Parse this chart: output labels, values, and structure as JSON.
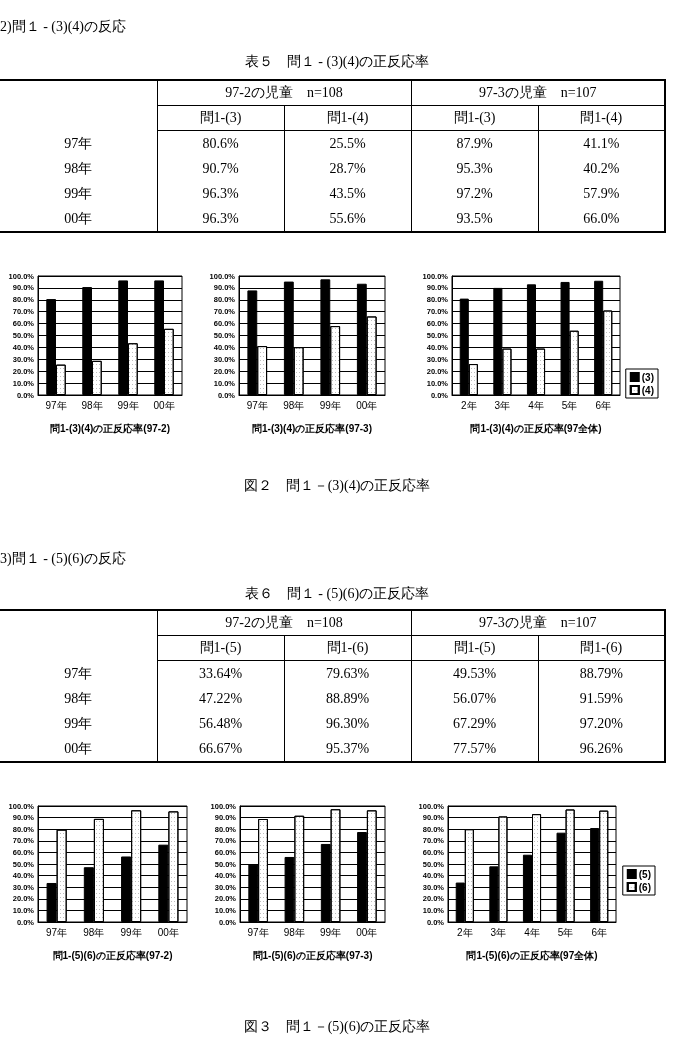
{
  "chart_data": [
    {
      "type": "other",
      "title": "2)問１ - (3)(4)の反応",
      "subtitle": "表５　問１ - (3)(4)の正反応率",
      "annotations": [
        "97-2の児童　n=108",
        "97-3の児童　n=107"
      ],
      "categories": [
        "97年",
        "98年",
        "99年",
        "00年"
      ],
      "series": [
        {
          "name": "問1-(3)",
          "values": [
            80.6,
            90.7,
            96.3,
            96.3
          ],
          "value_labels": [
            "80.6%",
            "90.7%",
            "96.3%",
            "96.3%"
          ]
        },
        {
          "name": "問1-(4)",
          "values": [
            25.5,
            28.7,
            43.5,
            55.6
          ],
          "value_labels": [
            "25.5%",
            "28.7%",
            "43.5%",
            "55.6%"
          ]
        },
        {
          "name": "問1-(3)",
          "values": [
            87.9,
            95.3,
            97.2,
            93.5
          ],
          "value_labels": [
            "87.9%",
            "95.3%",
            "97.2%",
            "93.5%"
          ]
        },
        {
          "name": "問1-(4)",
          "values": [
            41.1,
            40.2,
            57.9,
            66.0
          ],
          "value_labels": [
            "41.1%",
            "40.2%",
            "57.9%",
            "66.0%"
          ]
        }
      ]
    },
    {
      "type": "bar",
      "xlabel": "問1-(3)(4)の正反応率(97-2)",
      "categories": [
        "97年",
        "98年",
        "99年",
        "00年"
      ],
      "series": [
        {
          "color": "#000000",
          "values": [
            80.6,
            90.7,
            96.3,
            96.3
          ]
        },
        {
          "color": "#ffffff",
          "values": [
            25.5,
            28.7,
            43.5,
            55.6
          ]
        }
      ],
      "ylim": [
        0,
        100
      ],
      "yticks": [
        {
          "value": 0,
          "label": "0.0%"
        },
        {
          "value": 10,
          "label": "10.0%"
        },
        {
          "value": 20,
          "label": "20.0%"
        },
        {
          "value": 30,
          "label": "30.0%"
        },
        {
          "value": 40,
          "label": "40.0%"
        },
        {
          "value": 50,
          "label": "50.0%"
        },
        {
          "value": 60,
          "label": "60.0%"
        },
        {
          "value": 70,
          "label": "70.0%"
        },
        {
          "value": 80,
          "label": "80.0%"
        },
        {
          "value": 90,
          "label": "90.0%"
        },
        {
          "value": 100,
          "label": "100.0%"
        }
      ],
      "grid": "y"
    },
    {
      "type": "bar",
      "xlabel": "問1-(3)(4)の正反応率(97-3)",
      "annotations": [
        "図２　問１－(3)(4)の正反応率"
      ],
      "categories": [
        "97年",
        "98年",
        "99年",
        "00年"
      ],
      "series": [
        {
          "color": "#000000",
          "values": [
            87.9,
            95.3,
            97.2,
            93.5
          ]
        },
        {
          "color": "#ffffff",
          "values": [
            41.1,
            40.2,
            57.9,
            66.0
          ]
        }
      ],
      "ylim": [
        0,
        100
      ],
      "yticks": [
        {
          "value": 0,
          "label": "0.0%"
        },
        {
          "value": 10,
          "label": "10.0%"
        },
        {
          "value": 20,
          "label": "20.0%"
        },
        {
          "value": 30,
          "label": "30.0%"
        },
        {
          "value": 40,
          "label": "40.0%"
        },
        {
          "value": 50,
          "label": "50.0%"
        },
        {
          "value": 60,
          "label": "60.0%"
        },
        {
          "value": 70,
          "label": "70.0%"
        },
        {
          "value": 80,
          "label": "80.0%"
        },
        {
          "value": 90,
          "label": "90.0%"
        },
        {
          "value": 100,
          "label": "100.0%"
        }
      ],
      "grid": "y"
    },
    {
      "type": "bar",
      "xlabel": "問1-(3)(4)の正反応率(97全体)",
      "categories": [
        "2年",
        "3年",
        "4年",
        "5年",
        "6年"
      ],
      "series": [
        {
          "name": "(3)",
          "color": "#000000",
          "values": [
            81,
            90,
            93,
            95,
            96
          ]
        },
        {
          "name": "(4)",
          "color": "#ffffff",
          "values": [
            26,
            39,
            39,
            54,
            71
          ]
        }
      ],
      "ylim": [
        0,
        100
      ],
      "yticks": [
        {
          "value": 0,
          "label": "0.0%"
        },
        {
          "value": 10,
          "label": "10.0%"
        },
        {
          "value": 20,
          "label": "20.0%"
        },
        {
          "value": 30,
          "label": "30.0%"
        },
        {
          "value": 40,
          "label": "40.0%"
        },
        {
          "value": 50,
          "label": "50.0%"
        },
        {
          "value": 60,
          "label": "60.0%"
        },
        {
          "value": 70,
          "label": "70.0%"
        },
        {
          "value": 80,
          "label": "80.0%"
        },
        {
          "value": 90,
          "label": "90.0%"
        },
        {
          "value": 100,
          "label": "100.0%"
        }
      ],
      "grid": "y",
      "legend": "right"
    },
    {
      "type": "other",
      "title": "3)問１ - (5)(6)の反応",
      "subtitle": "表６　問１ - (5)(6)の正反応率",
      "annotations": [
        "97-2の児童　n=108",
        "97-3の児童　n=107"
      ],
      "categories": [
        "97年",
        "98年",
        "99年",
        "00年"
      ],
      "series": [
        {
          "name": "問1-(5)",
          "values": [
            33.64,
            47.22,
            56.48,
            66.67
          ],
          "value_labels": [
            "33.64%",
            "47.22%",
            "56.48%",
            "66.67%"
          ]
        },
        {
          "name": "問1-(6)",
          "values": [
            79.63,
            88.89,
            96.3,
            95.37
          ],
          "value_labels": [
            "79.63%",
            "88.89%",
            "96.30%",
            "95.37%"
          ]
        },
        {
          "name": "問1-(5)",
          "values": [
            49.53,
            56.07,
            67.29,
            77.57
          ],
          "value_labels": [
            "49.53%",
            "56.07%",
            "67.29%",
            "77.57%"
          ]
        },
        {
          "name": "問1-(6)",
          "values": [
            88.79,
            91.59,
            97.2,
            96.26
          ],
          "value_labels": [
            "88.79%",
            "91.59%",
            "97.20%",
            "96.26%"
          ]
        }
      ]
    },
    {
      "type": "bar",
      "xlabel": "問1-(5)(6)の正反応率(97-2)",
      "categories": [
        "97年",
        "98年",
        "99年",
        "00年"
      ],
      "series": [
        {
          "color": "#000000",
          "values": [
            33.64,
            47.22,
            56.48,
            66.67
          ]
        },
        {
          "color": "#ffffff",
          "values": [
            79.63,
            88.89,
            96.3,
            95.37
          ]
        }
      ],
      "ylim": [
        0,
        100
      ],
      "yticks": [
        {
          "value": 0,
          "label": "0.0%"
        },
        {
          "value": 10,
          "label": "10.0%"
        },
        {
          "value": 20,
          "label": "20.0%"
        },
        {
          "value": 30,
          "label": "30.0%"
        },
        {
          "value": 40,
          "label": "40.0%"
        },
        {
          "value": 50,
          "label": "50.0%"
        },
        {
          "value": 60,
          "label": "60.0%"
        },
        {
          "value": 70,
          "label": "70.0%"
        },
        {
          "value": 80,
          "label": "80.0%"
        },
        {
          "value": 90,
          "label": "90.0%"
        },
        {
          "value": 100,
          "label": "100.0%"
        }
      ],
      "grid": "y"
    },
    {
      "type": "bar",
      "xlabel": "問1-(5)(6)の正反応率(97-3)",
      "annotations": [
        "図３　問１－(5)(6)の正反応率"
      ],
      "categories": [
        "97年",
        "98年",
        "99年",
        "00年"
      ],
      "series": [
        {
          "color": "#000000",
          "values": [
            49.53,
            56.07,
            67.29,
            77.57
          ]
        },
        {
          "color": "#ffffff",
          "values": [
            88.79,
            91.59,
            97.2,
            96.26
          ]
        }
      ],
      "ylim": [
        0,
        100
      ],
      "yticks": [
        {
          "value": 0,
          "label": "0.0%"
        },
        {
          "value": 10,
          "label": "10.0%"
        },
        {
          "value": 20,
          "label": "20.0%"
        },
        {
          "value": 30,
          "label": "30.0%"
        },
        {
          "value": 40,
          "label": "40.0%"
        },
        {
          "value": 50,
          "label": "50.0%"
        },
        {
          "value": 60,
          "label": "60.0%"
        },
        {
          "value": 70,
          "label": "70.0%"
        },
        {
          "value": 80,
          "label": "80.0%"
        },
        {
          "value": 90,
          "label": "90.0%"
        },
        {
          "value": 100,
          "label": "100.0%"
        }
      ],
      "grid": "y"
    },
    {
      "type": "bar",
      "xlabel": "問1-(5)(6)の正反応率(97全体)",
      "categories": [
        "2年",
        "3年",
        "4年",
        "5年",
        "6年"
      ],
      "series": [
        {
          "name": "(5)",
          "color": "#000000",
          "values": [
            34,
            48,
            58,
            77,
            81
          ]
        },
        {
          "name": "(6)",
          "color": "#ffffff",
          "values": [
            80,
            91,
            93,
            97,
            96
          ]
        }
      ],
      "ylim": [
        0,
        100
      ],
      "yticks": [
        {
          "value": 0,
          "label": "0.0%"
        },
        {
          "value": 10,
          "label": "10.0%"
        },
        {
          "value": 20,
          "label": "20.0%"
        },
        {
          "value": 30,
          "label": "30.0%"
        },
        {
          "value": 40,
          "label": "40.0%"
        },
        {
          "value": 50,
          "label": "50.0%"
        },
        {
          "value": 60,
          "label": "60.0%"
        },
        {
          "value": 70,
          "label": "70.0%"
        },
        {
          "value": 80,
          "label": "80.0%"
        },
        {
          "value": 90,
          "label": "90.0%"
        },
        {
          "value": 100,
          "label": "100.0%"
        }
      ],
      "grid": "y",
      "legend": "right"
    }
  ]
}
